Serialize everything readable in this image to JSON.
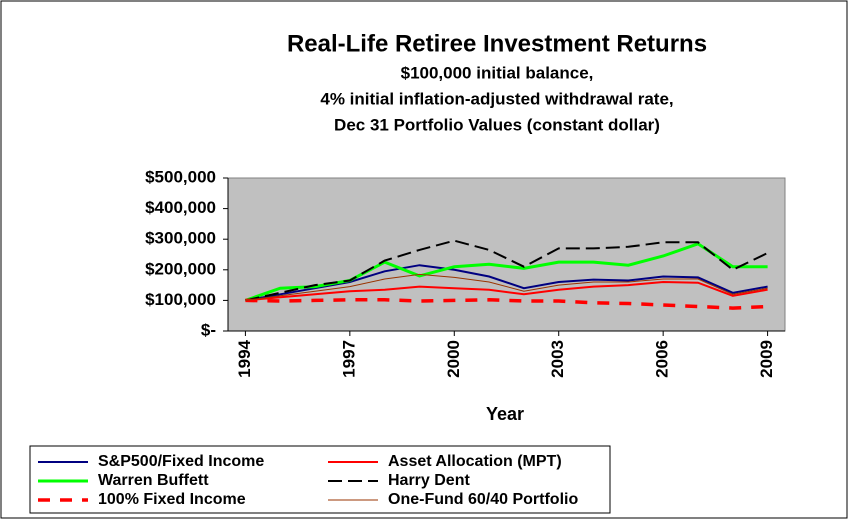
{
  "chart_data": {
    "type": "line",
    "title": "Real-Life Retiree Investment Returns",
    "subtitle": [
      "$100,000 initial balance,",
      "4% initial inflation-adjusted withdrawal rate,",
      "Dec 31 Portfolio Values (constant dollar)"
    ],
    "x_label": "Year",
    "x": [
      1994,
      1995,
      1996,
      1997,
      1998,
      1999,
      2000,
      2001,
      2002,
      2003,
      2004,
      2005,
      2006,
      2007,
      2008,
      2009
    ],
    "xlim": [
      1993.5,
      2009.5
    ],
    "xticks": [
      1994,
      1997,
      2000,
      2003,
      2006,
      2009
    ],
    "ylim": [
      0,
      500000
    ],
    "yticks": [
      {
        "value": 0,
        "label": "$-"
      },
      {
        "value": 100000,
        "label": "$100,000"
      },
      {
        "value": 200000,
        "label": "$200,000"
      },
      {
        "value": 300000,
        "label": "$300,000"
      },
      {
        "value": 400000,
        "label": "$400,000"
      },
      {
        "value": 500000,
        "label": "$500,000"
      }
    ],
    "grid": false,
    "plot_background": "#c0c0c0",
    "series": [
      {
        "name": "S&P500/Fixed Income",
        "color": "#000080",
        "dash": false,
        "values": [
          100000,
          120000,
          140000,
          160000,
          195000,
          215000,
          200000,
          178000,
          140000,
          160000,
          168000,
          165000,
          178000,
          175000,
          125000,
          145000
        ]
      },
      {
        "name": "Asset Allocation (MPT)",
        "color": "#ff0000",
        "dash": false,
        "values": [
          100000,
          110000,
          120000,
          130000,
          135000,
          145000,
          140000,
          135000,
          120000,
          135000,
          145000,
          150000,
          160000,
          158000,
          115000,
          135000
        ]
      },
      {
        "name": "Warren Buffett",
        "color": "#00ff00",
        "dash": false,
        "values": [
          100000,
          140000,
          145000,
          165000,
          225000,
          180000,
          210000,
          218000,
          205000,
          225000,
          225000,
          215000,
          245000,
          285000,
          210000,
          210000
        ]
      },
      {
        "name": "Harry Dent",
        "color": "#000000",
        "dash": true,
        "values": [
          100000,
          125000,
          150000,
          165000,
          230000,
          265000,
          295000,
          265000,
          210000,
          270000,
          270000,
          275000,
          290000,
          290000,
          200000,
          255000
        ]
      },
      {
        "name": "100% Fixed Income",
        "color": "#ff0000",
        "dash": true,
        "values": [
          100000,
          98000,
          100000,
          102000,
          102000,
          98000,
          100000,
          102000,
          98000,
          98000,
          92000,
          90000,
          85000,
          80000,
          75000,
          80000
        ]
      },
      {
        "name": "One-Fund 60/40 Portfolio",
        "color": "#993300",
        "dash": false,
        "values": [
          100000,
          115000,
          130000,
          145000,
          170000,
          185000,
          175000,
          160000,
          130000,
          150000,
          160000,
          160000,
          170000,
          170000,
          120000,
          140000
        ]
      }
    ]
  }
}
